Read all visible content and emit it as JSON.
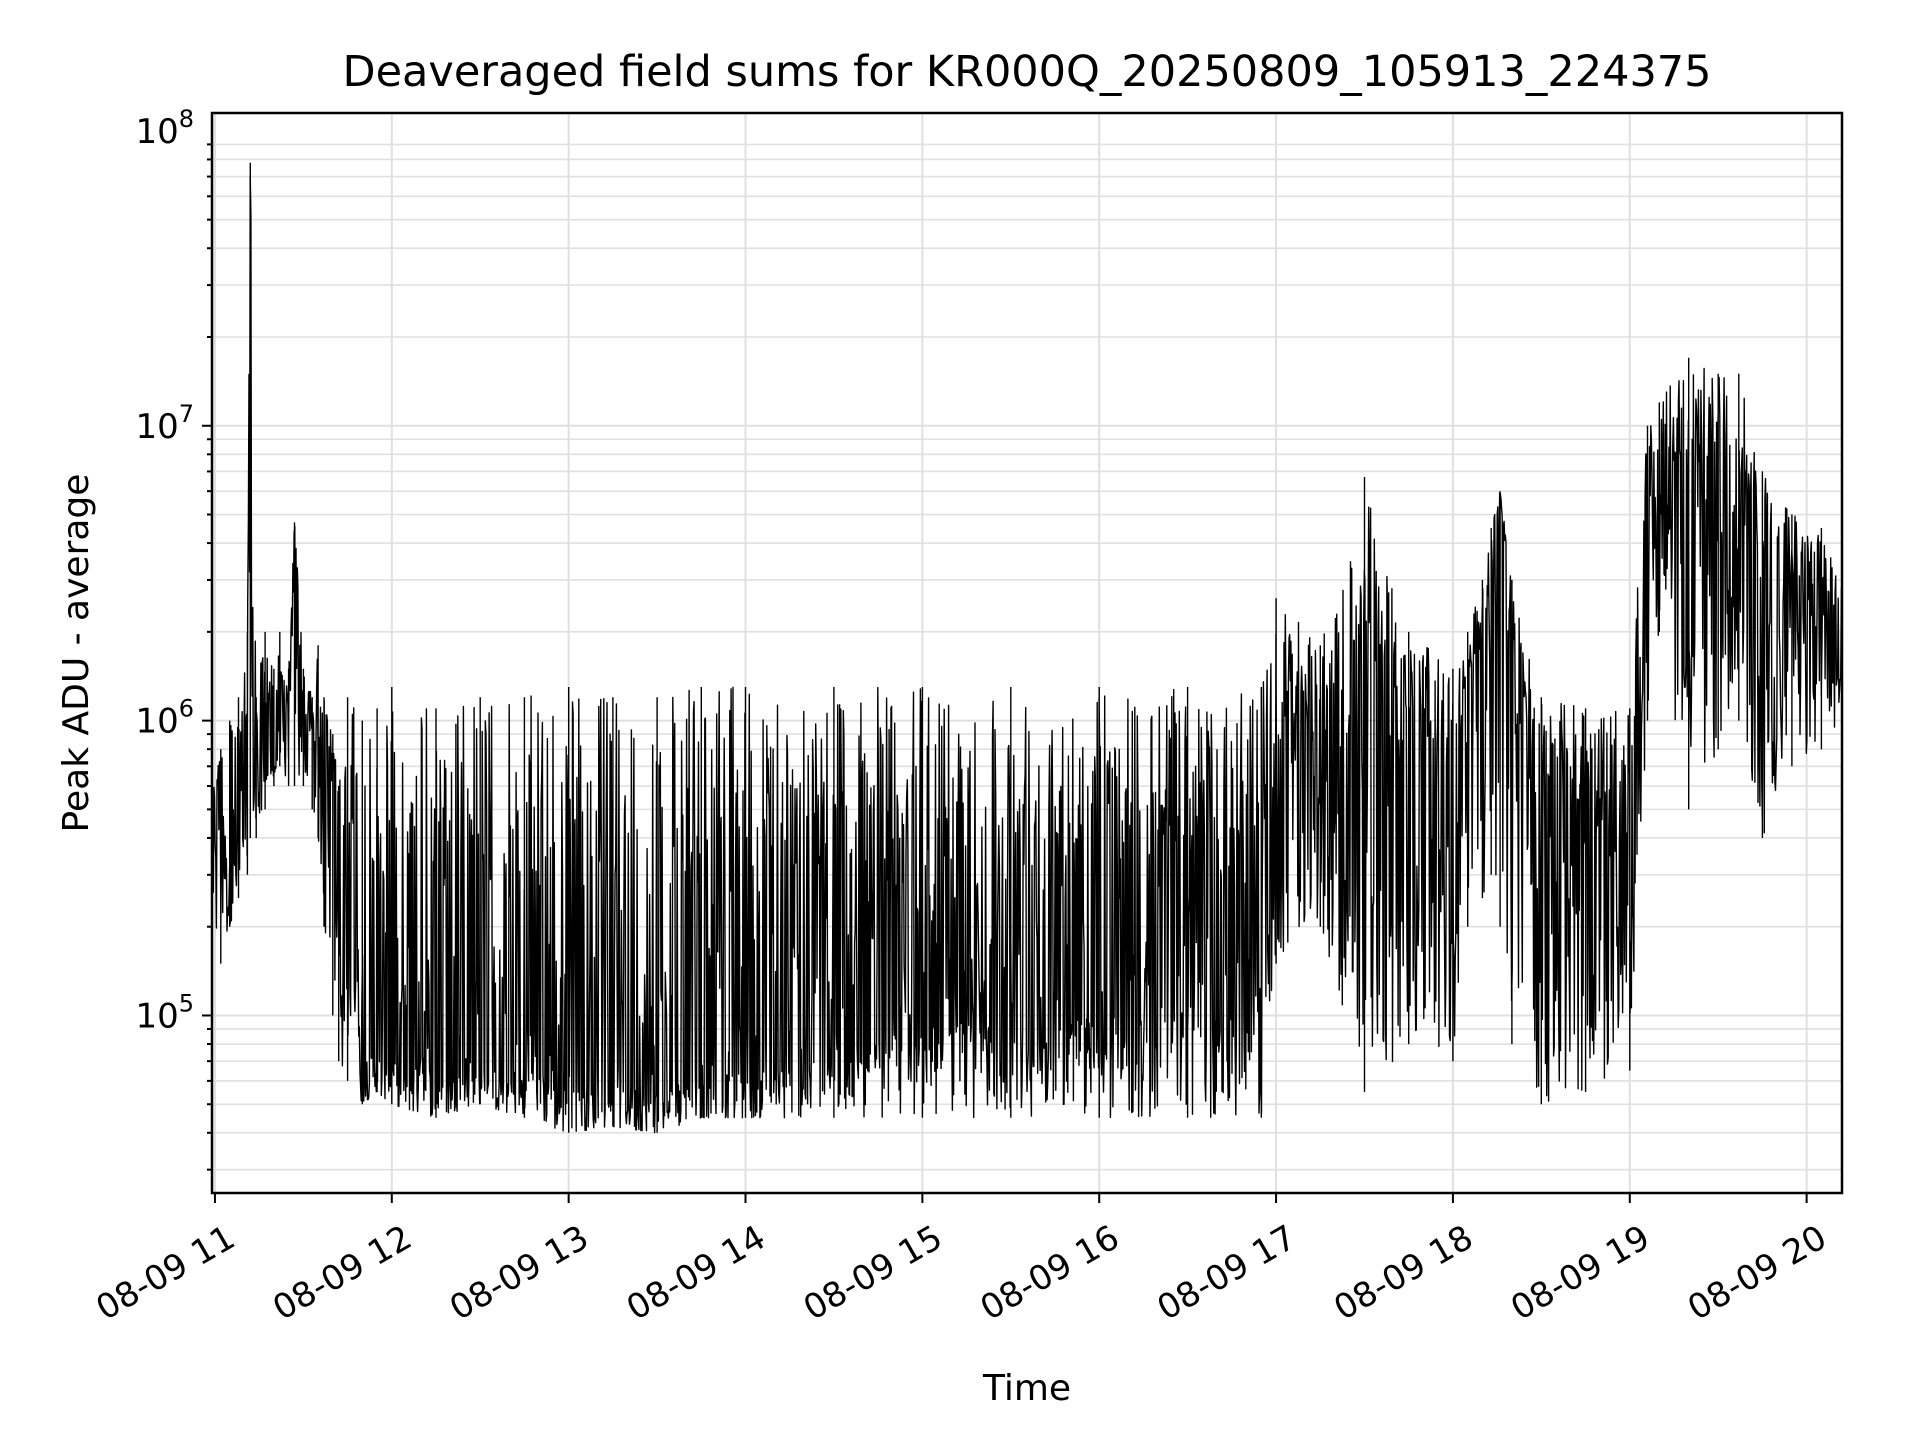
{
  "chart_data": {
    "type": "line",
    "title": "Deaveraged field sums for KR000Q_20250809_105913_224375",
    "xlabel": "Time",
    "ylabel": "Peak ADU - average",
    "yscale": "log",
    "ylim": [
      25000,
      115000000
    ],
    "xlim": [
      "2025-08-09 10:59",
      "2025-08-09 20:12"
    ],
    "grid": true,
    "line_color": "#000000",
    "grid_color": "#e0e0e0",
    "x_ticks": [
      {
        "label": "08-09 11",
        "t": "2025-08-09 11:00"
      },
      {
        "label": "08-09 12",
        "t": "2025-08-09 12:00"
      },
      {
        "label": "08-09 13",
        "t": "2025-08-09 13:00"
      },
      {
        "label": "08-09 14",
        "t": "2025-08-09 14:00"
      },
      {
        "label": "08-09 15",
        "t": "2025-08-09 15:00"
      },
      {
        "label": "08-09 16",
        "t": "2025-08-09 16:00"
      },
      {
        "label": "08-09 17",
        "t": "2025-08-09 17:00"
      },
      {
        "label": "08-09 18",
        "t": "2025-08-09 18:00"
      },
      {
        "label": "08-09 19",
        "t": "2025-08-09 19:00"
      },
      {
        "label": "08-09 20",
        "t": "2025-08-09 20:00"
      }
    ],
    "y_ticks": [
      {
        "base": "10",
        "exp": "5",
        "value": 100000
      },
      {
        "base": "10",
        "exp": "6",
        "value": 1000000
      },
      {
        "base": "10",
        "exp": "7",
        "value": 10000000
      },
      {
        "base": "10",
        "exp": "8",
        "value": 100000000
      }
    ],
    "series": [
      {
        "x": [
          "2025-08-09 10:59",
          "2025-08-09 11:02",
          "2025-08-09 11:05",
          "2025-08-09 11:08",
          "2025-08-09 11:11",
          "2025-08-09 11:12",
          "2025-08-09 11:14",
          "2025-08-09 11:17",
          "2025-08-09 11:20",
          "2025-08-09 11:22",
          "2025-08-09 11:25",
          "2025-08-09 11:27",
          "2025-08-09 11:30",
          "2025-08-09 11:33",
          "2025-08-09 11:35",
          "2025-08-09 11:37",
          "2025-08-09 11:40",
          "2025-08-09 11:42",
          "2025-08-09 11:45",
          "2025-08-09 11:50",
          "2025-08-09 11:55",
          "2025-08-09 12:00",
          "2025-08-09 12:15",
          "2025-08-09 12:30",
          "2025-08-09 12:45",
          "2025-08-09 13:00",
          "2025-08-09 13:15",
          "2025-08-09 13:30",
          "2025-08-09 13:45",
          "2025-08-09 14:00",
          "2025-08-09 14:30",
          "2025-08-09 15:00",
          "2025-08-09 15:30",
          "2025-08-09 16:00",
          "2025-08-09 16:30",
          "2025-08-09 16:55",
          "2025-08-09 17:00",
          "2025-08-09 17:15",
          "2025-08-09 17:30",
          "2025-08-09 17:45",
          "2025-08-09 18:00",
          "2025-08-09 18:05",
          "2025-08-09 18:10",
          "2025-08-09 18:13",
          "2025-08-09 18:16",
          "2025-08-09 18:20",
          "2025-08-09 18:30",
          "2025-08-09 18:45",
          "2025-08-09 19:00",
          "2025-08-09 19:06",
          "2025-08-09 19:10",
          "2025-08-09 19:20",
          "2025-08-09 19:30",
          "2025-08-09 19:37",
          "2025-08-09 19:45",
          "2025-08-09 19:55",
          "2025-08-09 20:05",
          "2025-08-09 20:12"
        ],
        "y": [
          400000,
          500000,
          450000,
          600000,
          550000,
          78000000,
          600000,
          700000,
          900000,
          1200000,
          900000,
          4700000,
          1000000,
          900000,
          950000,
          800000,
          500000,
          300000,
          250000,
          100000,
          90000,
          85000,
          90000,
          80000,
          85000,
          80000,
          75000,
          70000,
          72000,
          85000,
          100000,
          150000,
          160000,
          170000,
          170000,
          160000,
          650000,
          800000,
          750000,
          600000,
          500000,
          900000,
          1400000,
          2500000,
          5800000,
          1200000,
          400000,
          350000,
          300000,
          6000000,
          5000000,
          4000000,
          4500000,
          5000000,
          3000000,
          2500000,
          2000000,
          1800000
        ],
        "upper_envelope": [
          900000,
          800000,
          1000000,
          1200000,
          2000000,
          78000000,
          1200000,
          2000000,
          1500000,
          2000000,
          1500000,
          4700000,
          1500000,
          1200000,
          1800000,
          1200000,
          900000,
          600000,
          1200000,
          1000000,
          1100000,
          1300000,
          1100000,
          1200000,
          1200000,
          1300000,
          1200000,
          1200000,
          1300000,
          1300000,
          1300000,
          1300000,
          1300000,
          1300000,
          1300000,
          1300000,
          2600000,
          1800000,
          6700000,
          2000000,
          1500000,
          2000000,
          3000000,
          4500000,
          6000000,
          3000000,
          1200000,
          1100000,
          1100000,
          10000000,
          12000000,
          17000000,
          15000000,
          15000000,
          7000000,
          5000000,
          4500000,
          3000000
        ],
        "lower_envelope": [
          200000,
          150000,
          200000,
          250000,
          300000,
          400000,
          400000,
          500000,
          600000,
          700000,
          600000,
          600000,
          600000,
          500000,
          400000,
          200000,
          100000,
          70000,
          60000,
          50000,
          55000,
          50000,
          45000,
          50000,
          45000,
          40000,
          42000,
          40000,
          45000,
          45000,
          45000,
          45000,
          45000,
          45000,
          45000,
          45000,
          150000,
          200000,
          55000,
          80000,
          70000,
          200000,
          250000,
          300000,
          200000,
          80000,
          50000,
          55000,
          65000,
          1000000,
          2000000,
          500000,
          800000,
          1000000,
          400000,
          700000,
          800000,
          1000000
        ]
      }
    ]
  }
}
